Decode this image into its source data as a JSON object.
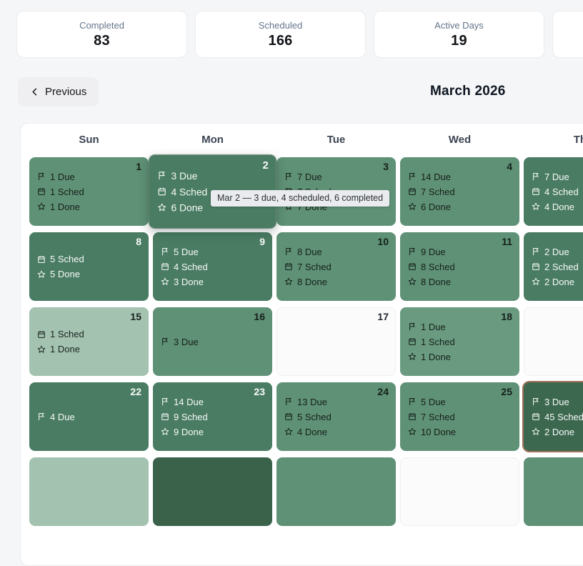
{
  "stats": [
    {
      "label": "Completed",
      "value": "83"
    },
    {
      "label": "Scheduled",
      "value": "166"
    },
    {
      "label": "Active Days",
      "value": "19"
    },
    {
      "label": "",
      "value": ""
    }
  ],
  "nav": {
    "previous_label": "Previous",
    "title": "March 2026"
  },
  "tooltip": {
    "text": "Mar 2 — 3 due, 4 scheduled, 6 completed"
  },
  "calendar": {
    "day_headers": [
      "Sun",
      "Mon",
      "Tue",
      "Wed",
      "Thu"
    ],
    "weeks": [
      [
        {
          "day": "1",
          "tone": "medium",
          "lines": [
            [
              "flag",
              "1 Due"
            ],
            [
              "cal",
              "1 Sched"
            ],
            [
              "star",
              "1 Done"
            ]
          ]
        },
        {
          "day": "2",
          "tone": "dark",
          "hover": true,
          "lines": [
            [
              "flag",
              "3 Due"
            ],
            [
              "cal",
              "4 Sched"
            ],
            [
              "star",
              "6 Done"
            ]
          ]
        },
        {
          "day": "3",
          "tone": "medium",
          "lines": [
            [
              "flag",
              "7 Due"
            ],
            [
              "cal",
              "7 Sched"
            ],
            [
              "star",
              "7 Done"
            ]
          ]
        },
        {
          "day": "4",
          "tone": "medium",
          "lines": [
            [
              "flag",
              "14 Due"
            ],
            [
              "cal",
              "7 Sched"
            ],
            [
              "star",
              "6 Done"
            ]
          ]
        },
        {
          "day": "",
          "tone": "dark",
          "lines": [
            [
              "flag",
              "7 Due"
            ],
            [
              "cal",
              "4 Sched"
            ],
            [
              "star",
              "4 Done"
            ]
          ]
        }
      ],
      [
        {
          "day": "8",
          "tone": "dark",
          "lines": [
            [
              "cal",
              "5 Sched"
            ],
            [
              "star",
              "5 Done"
            ]
          ]
        },
        {
          "day": "9",
          "tone": "dark",
          "lines": [
            [
              "flag",
              "5 Due"
            ],
            [
              "cal",
              "4 Sched"
            ],
            [
              "star",
              "3 Done"
            ]
          ]
        },
        {
          "day": "10",
          "tone": "medium",
          "lines": [
            [
              "flag",
              "8 Due"
            ],
            [
              "cal",
              "7 Sched"
            ],
            [
              "star",
              "8 Done"
            ]
          ]
        },
        {
          "day": "11",
          "tone": "medium",
          "lines": [
            [
              "flag",
              "9 Due"
            ],
            [
              "cal",
              "8 Sched"
            ],
            [
              "star",
              "8 Done"
            ]
          ]
        },
        {
          "day": "",
          "tone": "dark",
          "lines": [
            [
              "flag",
              "2 Due"
            ],
            [
              "cal",
              "2 Sched"
            ],
            [
              "star",
              "2 Done"
            ]
          ]
        }
      ],
      [
        {
          "day": "15",
          "tone": "light",
          "lines": [
            [
              "cal",
              "1 Sched"
            ],
            [
              "star",
              "1 Done"
            ]
          ]
        },
        {
          "day": "16",
          "tone": "medium",
          "lines": [
            [
              "flag",
              "3 Due"
            ]
          ]
        },
        {
          "day": "17",
          "tone": "empty",
          "lines": []
        },
        {
          "day": "18",
          "tone": "mlight",
          "lines": [
            [
              "flag",
              "1 Due"
            ],
            [
              "cal",
              "1 Sched"
            ],
            [
              "star",
              "1 Done"
            ]
          ]
        },
        {
          "day": "",
          "tone": "empty",
          "lines": []
        }
      ],
      [
        {
          "day": "22",
          "tone": "dark",
          "lines": [
            [
              "flag",
              "4 Due"
            ]
          ]
        },
        {
          "day": "23",
          "tone": "dark",
          "lines": [
            [
              "flag",
              "14 Due"
            ],
            [
              "cal",
              "9 Sched"
            ],
            [
              "star",
              "9 Done"
            ]
          ]
        },
        {
          "day": "24",
          "tone": "medium",
          "lines": [
            [
              "flag",
              "13 Due"
            ],
            [
              "cal",
              "5 Sched"
            ],
            [
              "star",
              "4 Done"
            ]
          ]
        },
        {
          "day": "25",
          "tone": "medium",
          "lines": [
            [
              "flag",
              "5 Due"
            ],
            [
              "cal",
              "7 Sched"
            ],
            [
              "star",
              "10 Done"
            ]
          ]
        },
        {
          "day": "",
          "tone": "today",
          "lines": [
            [
              "flag",
              "3 Due"
            ],
            [
              "cal",
              "45 Sched"
            ],
            [
              "star",
              "2 Done"
            ]
          ]
        }
      ],
      [
        {
          "day": "",
          "tone": "light",
          "lines": []
        },
        {
          "day": "",
          "tone": "darkest",
          "lines": []
        },
        {
          "day": "",
          "tone": "medium",
          "lines": []
        },
        {
          "day": "",
          "tone": "empty",
          "lines": []
        },
        {
          "day": "",
          "tone": "medium",
          "lines": []
        }
      ]
    ]
  },
  "colors": {
    "page_bg": "#f5f6f8",
    "card_bg": "#ffffff",
    "green_light": "#a3c2b0",
    "green_medium": "#5f9176",
    "green_dark": "#4a7c63",
    "green_darkest": "#3a624b",
    "today_fill": "#3d6850",
    "today_ring": "#a17158",
    "tooltip_bg": "#e9ebee"
  }
}
